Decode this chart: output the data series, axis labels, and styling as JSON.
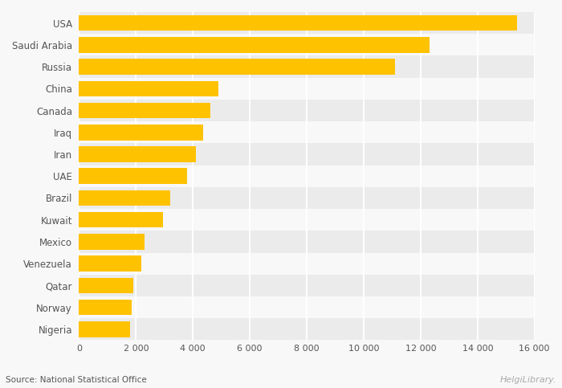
{
  "countries": [
    "USA",
    "Saudi Arabia",
    "Russia",
    "China",
    "Canada",
    "Iraq",
    "Iran",
    "UAE",
    "Brazil",
    "Kuwait",
    "Mexico",
    "Venezuela",
    "Qatar",
    "Norway",
    "Nigeria"
  ],
  "values": [
    15400,
    12300,
    11100,
    4900,
    4600,
    4350,
    4100,
    3800,
    3200,
    2950,
    2300,
    2200,
    1900,
    1850,
    1800
  ],
  "bar_color": "#FFC200",
  "bar_height": 0.72,
  "bg_color_even": "#EBEBEB",
  "bg_color_odd": "#F8F8F8",
  "text_color": "#555555",
  "grid_color": "#FFFFFF",
  "source_text": "Source: National Statistical Office",
  "helgi_text": "HelgiLibrary.",
  "xlim": [
    0,
    16000
  ],
  "xticks": [
    0,
    2000,
    4000,
    6000,
    8000,
    10000,
    12000,
    14000,
    16000
  ],
  "xtick_labels": [
    "0",
    "2 000",
    "4 000",
    "6 000",
    "8 000",
    "10 000",
    "12 000",
    "14 000",
    "16 000"
  ],
  "figure_width": 7.0,
  "figure_height": 4.83,
  "dpi": 100,
  "fig_bg": "#F8F8F8"
}
